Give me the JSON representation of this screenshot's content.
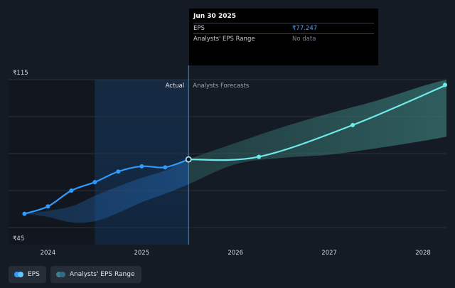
{
  "tooltip": {
    "title": "Jun 30 2025",
    "rows": [
      {
        "label": "EPS",
        "value": "₹77.247"
      },
      {
        "label": "Analysts' EPS Range",
        "value": "No data"
      }
    ]
  },
  "legend": [
    {
      "label": "EPS",
      "color": "#2f9bff",
      "color2": "#5ec8ff"
    },
    {
      "label": "Analysts' EPS Range",
      "color": "#3a7f86",
      "color2": "#2f6a88"
    }
  ],
  "colors": {
    "background": "#151b24",
    "actual_band": "#14304f",
    "eps_line": "#2f9bff",
    "forecast_line": "#6fe9e9",
    "forecast_band": "#2e5a5c",
    "grid": "#2a3039"
  },
  "chart_data": {
    "type": "line",
    "region_labels": {
      "actual": "Actual",
      "forecast": "Analysts Forecasts"
    },
    "y_ticks": [
      {
        "value": 115,
        "label": "₹115"
      },
      {
        "value": 45,
        "label": "₹45"
      }
    ],
    "ylim": [
      45,
      115
    ],
    "x_ticks": [
      {
        "value": 2024.0,
        "label": "2024"
      },
      {
        "value": 2025.0,
        "label": "2025"
      },
      {
        "value": 2026.0,
        "label": "2026"
      },
      {
        "value": 2027.0,
        "label": "2027"
      },
      {
        "value": 2028.0,
        "label": "2028"
      }
    ],
    "xlim": [
      2023.58,
      2028.25
    ],
    "actual_region_start": 2024.5,
    "split_x": 2025.5,
    "series": [
      {
        "name": "EPS",
        "x": [
          2023.75,
          2024.0,
          2024.25,
          2024.5,
          2024.75,
          2025.0,
          2025.25,
          2025.5
        ],
        "values": [
          51.5,
          55.0,
          62.5,
          66.5,
          71.5,
          74.0,
          73.5,
          77.247
        ]
      },
      {
        "name": "EPS forecast",
        "x": [
          2025.5,
          2026.25,
          2027.25,
          2028.25
        ],
        "values": [
          77.247,
          78.5,
          93.5,
          112.5
        ]
      }
    ],
    "range_band": {
      "x": [
        2023.75,
        2024.0,
        2024.25,
        2024.5,
        2024.75,
        2025.0,
        2025.25,
        2025.5,
        2026.0,
        2026.5,
        2027.0,
        2027.5,
        2028.0,
        2028.25
      ],
      "high": [
        51.5,
        53.0,
        55.0,
        60.0,
        64.5,
        68.5,
        72.0,
        77.247,
        85.0,
        92.5,
        99.0,
        105.0,
        112.0,
        115.0
      ],
      "low": [
        51.5,
        50.0,
        47.5,
        48.0,
        52.0,
        57.0,
        61.0,
        65.5,
        75.0,
        78.0,
        79.5,
        82.5,
        86.0,
        88.0
      ]
    }
  }
}
